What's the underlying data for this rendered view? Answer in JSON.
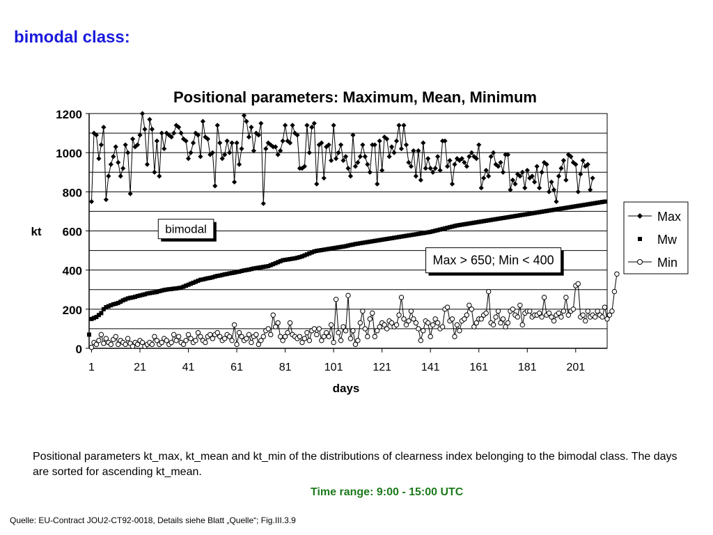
{
  "slide": {
    "title": "bimodal class:",
    "caption": "Positional parameters kt_max, kt_mean and kt_min of the distributions of clearness index belonging to the bimodal class. The days are sorted for ascending kt_mean.",
    "time_range": "Time range: 9:00 - 15:00 UTC",
    "source": "Quelle: EU-Contract JOU2-CT92-0018, Details siehe Blatt „Quelle“; Fig.III.3.9"
  },
  "chart_data": {
    "type": "line",
    "title": "Positional parameters: Maximum, Mean, Minimum",
    "xlabel": "days",
    "ylabel": "kt",
    "xlim": [
      1,
      214
    ],
    "ylim": [
      0,
      1200
    ],
    "x_ticks": [
      1,
      21,
      41,
      61,
      81,
      101,
      121,
      141,
      161,
      181,
      201
    ],
    "y_ticks": [
      0,
      200,
      400,
      600,
      800,
      1000,
      1200
    ],
    "grid": "horizontal",
    "plot_background": "#ffffff",
    "legend": {
      "placement": "right",
      "entries": [
        {
          "label": "Max",
          "marker": "diamond-filled",
          "line": true
        },
        {
          "label": "Mw",
          "marker": "square-filled",
          "line": false
        },
        {
          "label": "Min",
          "marker": "circle-open",
          "line": true
        }
      ]
    },
    "annotations": [
      {
        "text": "bimodal",
        "x": 40,
        "y": 610
      },
      {
        "text": "Max > 650; Min < 400",
        "x": 167,
        "y": 450
      }
    ],
    "series": [
      {
        "name": "Max",
        "color": "#000000",
        "marker": "diamond",
        "values": [
          750,
          1100,
          1090,
          970,
          1040,
          1130,
          760,
          880,
          940,
          980,
          1030,
          950,
          880,
          920,
          1040,
          1000,
          790,
          1070,
          1030,
          1040,
          1090,
          1200,
          1120,
          940,
          1170,
          1120,
          900,
          1060,
          880,
          1100,
          1020,
          1100,
          1090,
          1080,
          1100,
          1140,
          1130,
          1100,
          1070,
          1060,
          970,
          1000,
          1050,
          1100,
          1090,
          980,
          1160,
          1080,
          1070,
          990,
          1000,
          830,
          1140,
          1050,
          970,
          990,
          1060,
          1000,
          1050,
          850,
          1050,
          940,
          1020,
          1190,
          1160,
          1080,
          1130,
          1010,
          1100,
          1090,
          1150,
          740,
          1020,
          1050,
          1040,
          1030,
          1030,
          990,
          1010,
          1060,
          1140,
          1060,
          1050,
          1140,
          1100,
          1090,
          920,
          920,
          930,
          1140,
          1000,
          1130,
          1150,
          840,
          1040,
          1050,
          870,
          1030,
          1040,
          960,
          1140,
          970,
          1000,
          1040,
          960,
          980,
          920,
          880,
          1090,
          930,
          950,
          980,
          1040,
          980,
          940,
          900,
          1040,
          1040,
          840,
          1060,
          910,
          1080,
          1070,
          980,
          1030,
          1000,
          1060,
          1140,
          1020,
          1140,
          1040,
          950,
          930,
          1010,
          880,
          1010,
          860,
          1050,
          920,
          970,
          920,
          900,
          920,
          980,
          910,
          1060,
          1060,
          930,
          960,
          840,
          940,
          970,
          960,
          970,
          950,
          930,
          980,
          1000,
          980,
          970,
          1040,
          820,
          870,
          910,
          880,
          980,
          1000,
          940,
          930,
          950,
          900,
          990,
          990,
          810,
          860,
          840,
          890,
          880,
          900,
          820,
          910,
          870,
          880,
          850,
          930,
          820,
          900,
          950,
          940,
          800,
          850,
          810,
          750,
          880,
          920,
          960,
          860,
          990,
          980,
          950,
          940,
          800,
          890,
          960,
          930,
          940,
          810,
          870
        ],
        "x_start": 1
      },
      {
        "name": "Mw",
        "color": "#000000",
        "marker": "square",
        "values": [
          70,
          150,
          155,
          160,
          170,
          180,
          200,
          210,
          215,
          220,
          225,
          228,
          232,
          238,
          245,
          250,
          255,
          258,
          260,
          263,
          267,
          270,
          273,
          276,
          280,
          282,
          284,
          286,
          288,
          292,
          295,
          298,
          300,
          302,
          303,
          305,
          306,
          308,
          310,
          315,
          320,
          325,
          330,
          335,
          340,
          345,
          350,
          352,
          355,
          358,
          360,
          363,
          367,
          370,
          372,
          375,
          378,
          380,
          383,
          385,
          387,
          390,
          392,
          395,
          398,
          400,
          402,
          405,
          408,
          410,
          412,
          414,
          416,
          418,
          420,
          425,
          430,
          435,
          440,
          445,
          450,
          452,
          454,
          456,
          458,
          460,
          463,
          466,
          470,
          475,
          480,
          485,
          490,
          495,
          498,
          500,
          502,
          504,
          506,
          508,
          510,
          512,
          514,
          516,
          518,
          520,
          522,
          525,
          528,
          530,
          533,
          535,
          537,
          539,
          541,
          543,
          545,
          547,
          549,
          551,
          553,
          555,
          557,
          559,
          561,
          563,
          565,
          567,
          569,
          571,
          573,
          575,
          577,
          579,
          581,
          583,
          585,
          587,
          589,
          591,
          593,
          595,
          598,
          601,
          604,
          607,
          610,
          613,
          616,
          619,
          622,
          625,
          628,
          630,
          632,
          634,
          636,
          638,
          640,
          642,
          644,
          646,
          648,
          650,
          652,
          654,
          656,
          658,
          660,
          662,
          664,
          666,
          668,
          670,
          672,
          674,
          676,
          678,
          680,
          682,
          684,
          686,
          688,
          690,
          692,
          694,
          696,
          698,
          700,
          702,
          704,
          706,
          708,
          710,
          712,
          714,
          716,
          718,
          720,
          722,
          724,
          726,
          728,
          730,
          732,
          734,
          736,
          738,
          740,
          742,
          744,
          746,
          748,
          750
        ],
        "x_start": 0
      },
      {
        "name": "Min",
        "color": "#000000",
        "marker": "circle",
        "values": [
          5,
          30,
          20,
          40,
          70,
          25,
          50,
          30,
          20,
          45,
          60,
          20,
          40,
          30,
          20,
          50,
          25,
          10,
          30,
          20,
          40,
          30,
          10,
          20,
          30,
          20,
          60,
          40,
          20,
          30,
          50,
          40,
          20,
          30,
          70,
          40,
          60,
          30,
          20,
          40,
          70,
          50,
          30,
          40,
          80,
          60,
          40,
          30,
          60,
          70,
          50,
          70,
          80,
          60,
          40,
          50,
          70,
          60,
          40,
          120,
          20,
          80,
          60,
          40,
          50,
          70,
          30,
          60,
          70,
          20,
          40,
          60,
          90,
          100,
          70,
          170,
          110,
          130,
          60,
          40,
          60,
          80,
          130,
          70,
          60,
          50,
          60,
          30,
          50,
          80,
          40,
          90,
          100,
          70,
          100,
          40,
          60,
          80,
          60,
          120,
          30,
          250,
          80,
          40,
          110,
          90,
          270,
          50,
          90,
          20,
          40,
          130,
          190,
          100,
          60,
          150,
          180,
          60,
          90,
          110,
          130,
          120,
          100,
          140,
          130,
          110,
          120,
          170,
          260,
          150,
          120,
          140,
          190,
          150,
          130,
          100,
          40,
          90,
          140,
          130,
          60,
          120,
          150,
          130,
          100,
          110,
          200,
          210,
          140,
          150,
          60,
          120,
          90,
          140,
          150,
          170,
          220,
          200,
          110,
          130,
          150,
          150,
          170,
          180,
          290,
          130,
          120,
          160,
          190,
          130,
          150,
          110,
          130,
          190,
          200,
          170,
          160,
          220,
          120,
          180,
          190,
          190,
          160,
          170,
          170,
          180,
          160,
          260,
          170,
          180,
          160,
          140,
          170,
          180,
          160,
          190,
          260,
          170,
          190,
          200,
          320,
          330,
          160,
          170,
          140,
          190,
          160,
          170,
          160,
          190,
          170,
          160,
          210,
          150,
          170,
          190,
          290,
          380
        ],
        "x_start": 1
      }
    ]
  }
}
